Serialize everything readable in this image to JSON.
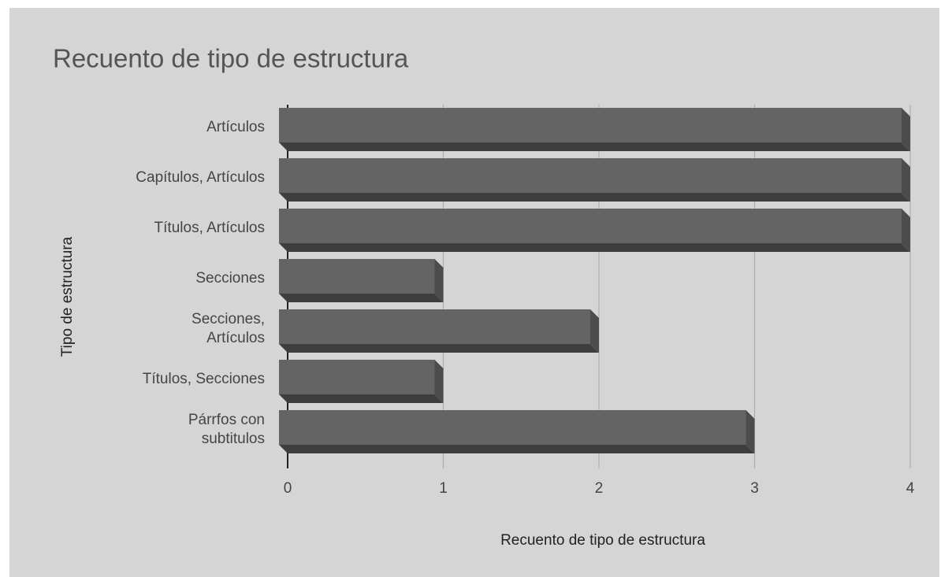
{
  "chart_data": {
    "type": "bar",
    "orientation": "horizontal",
    "title": "Recuento de tipo de estructura",
    "xlabel": "Recuento de tipo de estructura",
    "ylabel": "Tipo de estructura",
    "categories": [
      "Artículos",
      "Capítulos, Artículos",
      "Títulos, Artículos",
      "Secciones",
      "Secciones,\nArtículos",
      "Títulos, Secciones",
      "Párrfos con\nsubtitulos"
    ],
    "values": [
      4,
      4,
      4,
      1,
      2,
      1,
      3
    ],
    "color": "#646464",
    "xlim": [
      0,
      4
    ],
    "xticks": [
      0,
      1,
      2,
      3,
      4
    ],
    "grid": true
  }
}
